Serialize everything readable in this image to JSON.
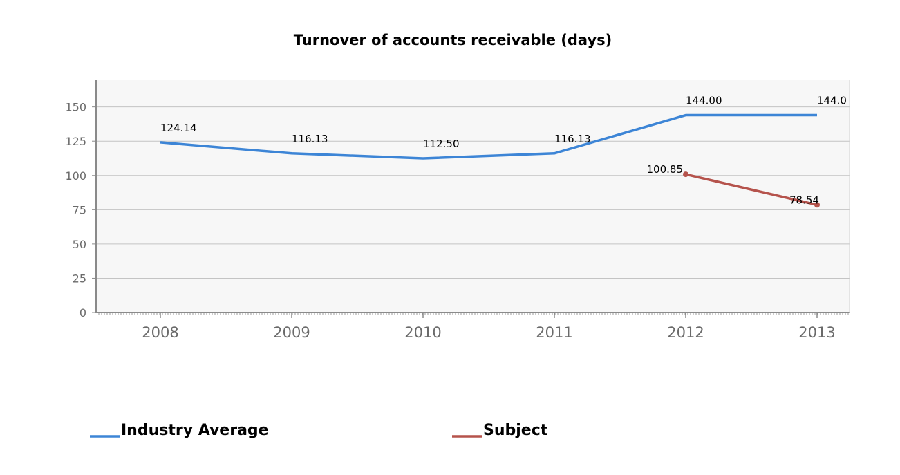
{
  "chart_data": {
    "type": "line",
    "title": "Turnover of accounts receivable (days)",
    "xlabel": "",
    "ylabel": "",
    "categories": [
      "2008",
      "2009",
      "2010",
      "2011",
      "2012",
      "2013"
    ],
    "ylim": [
      0,
      170
    ],
    "yticks": [
      "0",
      "25",
      "50",
      "75",
      "100",
      "125",
      "150"
    ],
    "grid": true,
    "legend_position": "bottom-left",
    "series": [
      {
        "name": "Industry Average",
        "color": "#3d85d6",
        "values": [
          124.14,
          116.13,
          112.5,
          116.13,
          144.0,
          144.0
        ],
        "labels": [
          "124.14",
          "116.13",
          "112.50",
          "116.13",
          "144.00",
          "144.0"
        ]
      },
      {
        "name": "Subject",
        "color": "#b5534c",
        "values": [
          null,
          null,
          null,
          null,
          100.85,
          78.54
        ],
        "labels": [
          "",
          "",
          "",
          "",
          "100.85",
          "78.54"
        ]
      }
    ]
  }
}
